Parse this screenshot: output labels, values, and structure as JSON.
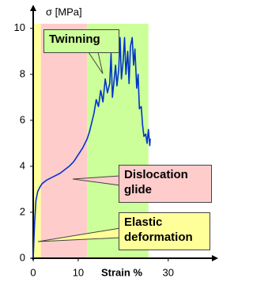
{
  "chart_data": {
    "type": "line",
    "y_label": "σ [MPa]",
    "x_label": "Strain %",
    "x": [
      0,
      0.3,
      0.6,
      1,
      1.5,
      2,
      3,
      4,
      5,
      6,
      7,
      8,
      9,
      10,
      11,
      12,
      12.5,
      13,
      13.5,
      14,
      14.5,
      15,
      15.5,
      16,
      16.5,
      17,
      17.3,
      17.6,
      18,
      18.3,
      18.6,
      19,
      19.3,
      19.6,
      20,
      20.3,
      20.6,
      21,
      21.3,
      21.6,
      22,
      22.3,
      22.6,
      23,
      23.3,
      23.6,
      24,
      24.3,
      24.6,
      25,
      25.3,
      25.6,
      25.9,
      26
    ],
    "series": [
      {
        "color": "#0033cc",
        "values": [
          0,
          1.5,
          2.5,
          2.9,
          3.1,
          3.25,
          3.4,
          3.5,
          3.6,
          3.7,
          3.85,
          4.0,
          4.2,
          4.5,
          4.8,
          5.2,
          5.5,
          5.9,
          6.3,
          6.9,
          6.6,
          7.3,
          6.8,
          7.8,
          7.2,
          7.6,
          8.9,
          7.0,
          7.8,
          8.4,
          7.5,
          8.2,
          9.6,
          7.8,
          8.6,
          9.6,
          8.0,
          9.0,
          7.6,
          9.2,
          9.6,
          8.4,
          9.1,
          7.4,
          8.0,
          6.5,
          6.6,
          5.8,
          5.3,
          5.4,
          5.0,
          5.6,
          4.9,
          5.2
        ]
      }
    ],
    "regions": [
      {
        "label": "Elastic deformation",
        "xrange": [
          0,
          1.7
        ],
        "color": "#ffff99"
      },
      {
        "label": "Dislocation glide",
        "xrange": [
          1.7,
          12
        ],
        "color": "#ffcccc"
      },
      {
        "label": "Twinning",
        "xrange": [
          12,
          25.6
        ],
        "color": "#ccff99"
      }
    ],
    "xlim": [
      0,
      39
    ],
    "ylim": [
      0,
      10.2
    ],
    "xticks": [
      0,
      10,
      30
    ],
    "yticks": [
      0,
      2,
      4,
      6,
      8,
      10
    ]
  }
}
